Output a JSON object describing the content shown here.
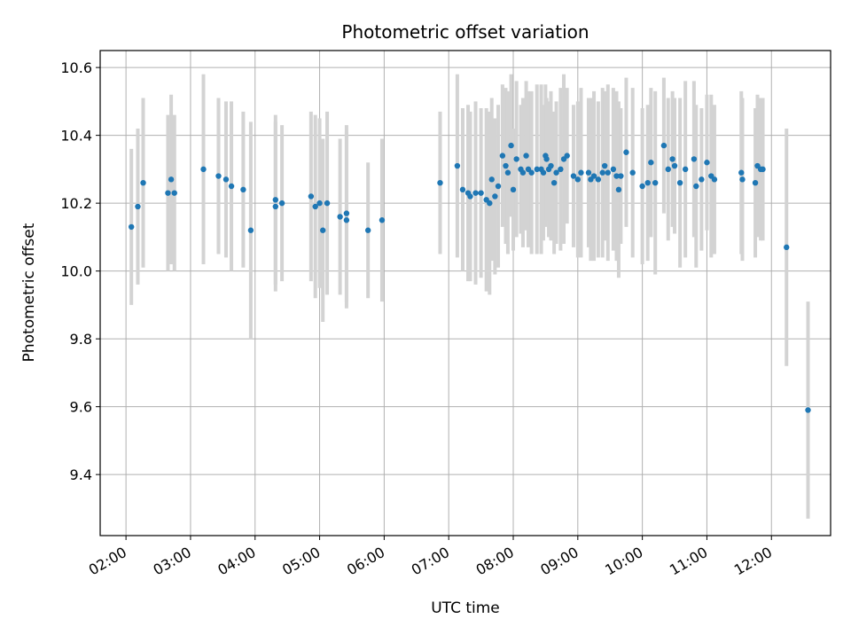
{
  "chart_data": {
    "type": "scatter",
    "title": "Photometric offset variation",
    "xlabel": "UTC time",
    "ylabel": "Photometric offset",
    "x_tick_labels": [
      "02:00",
      "03:00",
      "04:00",
      "05:00",
      "06:00",
      "07:00",
      "08:00",
      "09:00",
      "10:00",
      "11:00",
      "12:00"
    ],
    "y_ticks": [
      9.4,
      9.6,
      9.8,
      10.0,
      10.2,
      10.4,
      10.6
    ],
    "y_tick_labels": [
      "9.4",
      "9.6",
      "9.8",
      "10.0",
      "10.2",
      "10.4",
      "10.6"
    ],
    "xlim": [
      "01:36",
      "12:55"
    ],
    "ylim": [
      9.22,
      10.65
    ],
    "grid": true,
    "point_color": "#1f77b4",
    "errorbar_color": "#d3d3d3",
    "series": [
      {
        "x": [
          "02:05",
          "02:11",
          "02:16",
          "02:39",
          "02:42",
          "02:45",
          "03:12",
          "03:26",
          "03:33",
          "03:38",
          "03:49",
          "03:56",
          "04:19",
          "04:19",
          "04:25",
          "04:52",
          "04:56",
          "05:00",
          "05:03",
          "05:07",
          "05:19",
          "05:25",
          "05:25",
          "05:45",
          "05:58",
          "06:52",
          "07:08",
          "07:13",
          "07:18",
          "07:20",
          "07:25",
          "07:30",
          "07:35",
          "07:38",
          "07:40",
          "07:43",
          "07:46",
          "07:50",
          "07:53",
          "07:55",
          "07:58",
          "08:00",
          "08:03",
          "08:07",
          "08:09",
          "08:12",
          "08:14",
          "08:17",
          "08:22",
          "08:26",
          "08:28",
          "08:30",
          "08:31",
          "08:33",
          "08:35",
          "08:38",
          "08:40",
          "08:44",
          "08:47",
          "08:50",
          "08:56",
          "09:00",
          "09:03",
          "09:10",
          "09:12",
          "09:15",
          "09:19",
          "09:23",
          "09:25",
          "09:28",
          "09:33",
          "09:36",
          "09:38",
          "09:40",
          "09:45",
          "09:51",
          "10:00",
          "10:05",
          "10:08",
          "10:12",
          "10:20",
          "10:24",
          "10:28",
          "10:30",
          "10:35",
          "10:40",
          "10:48",
          "10:50",
          "10:55",
          "11:00",
          "11:04",
          "11:07",
          "11:32",
          "11:33",
          "11:45",
          "11:47",
          "11:50",
          "11:52",
          "12:14",
          "12:34"
        ],
        "y": [
          10.13,
          10.19,
          10.26,
          10.23,
          10.27,
          10.23,
          10.3,
          10.28,
          10.27,
          10.25,
          10.24,
          10.12,
          10.21,
          10.19,
          10.2,
          10.22,
          10.19,
          10.2,
          10.12,
          10.2,
          10.16,
          10.15,
          10.17,
          10.12,
          10.15,
          10.26,
          10.31,
          10.24,
          10.23,
          10.22,
          10.23,
          10.23,
          10.21,
          10.2,
          10.27,
          10.22,
          10.25,
          10.34,
          10.31,
          10.29,
          10.37,
          10.24,
          10.33,
          10.3,
          10.29,
          10.34,
          10.3,
          10.29,
          10.3,
          10.3,
          10.29,
          10.34,
          10.33,
          10.3,
          10.31,
          10.26,
          10.29,
          10.3,
          10.33,
          10.34,
          10.28,
          10.27,
          10.29,
          10.29,
          10.27,
          10.28,
          10.27,
          10.29,
          10.31,
          10.29,
          10.3,
          10.28,
          10.24,
          10.28,
          10.35,
          10.29,
          10.25,
          10.26,
          10.32,
          10.26,
          10.37,
          10.3,
          10.33,
          10.31,
          10.26,
          10.3,
          10.33,
          10.25,
          10.27,
          10.32,
          10.28,
          10.27,
          10.29,
          10.27,
          10.26,
          10.31,
          10.3,
          10.3,
          10.07,
          9.59
        ],
        "err": [
          0.23,
          0.23,
          0.25,
          0.23,
          0.25,
          0.23,
          0.28,
          0.23,
          0.23,
          0.25,
          0.23,
          0.32,
          0.25,
          0.25,
          0.23,
          0.25,
          0.27,
          0.25,
          0.27,
          0.27,
          0.23,
          0.26,
          0.26,
          0.2,
          0.24,
          0.21,
          0.27,
          0.24,
          0.26,
          0.25,
          0.27,
          0.25,
          0.27,
          0.27,
          0.24,
          0.23,
          0.24,
          0.21,
          0.23,
          0.24,
          0.21,
          0.18,
          0.23,
          0.19,
          0.22,
          0.22,
          0.23,
          0.24,
          0.25,
          0.25,
          0.2,
          0.21,
          0.18,
          0.2,
          0.22,
          0.21,
          0.21,
          0.24,
          0.25,
          0.2,
          0.21,
          0.23,
          0.25,
          0.22,
          0.24,
          0.25,
          0.23,
          0.25,
          0.22,
          0.26,
          0.24,
          0.25,
          0.26,
          0.2,
          0.22,
          0.25,
          0.23,
          0.23,
          0.22,
          0.27,
          0.2,
          0.21,
          0.2,
          0.2,
          0.25,
          0.26,
          0.23,
          0.24,
          0.21,
          0.2,
          0.24,
          0.22,
          0.24,
          0.24,
          0.22,
          0.21,
          0.21,
          0.21,
          0.35,
          0.32
        ]
      }
    ]
  }
}
